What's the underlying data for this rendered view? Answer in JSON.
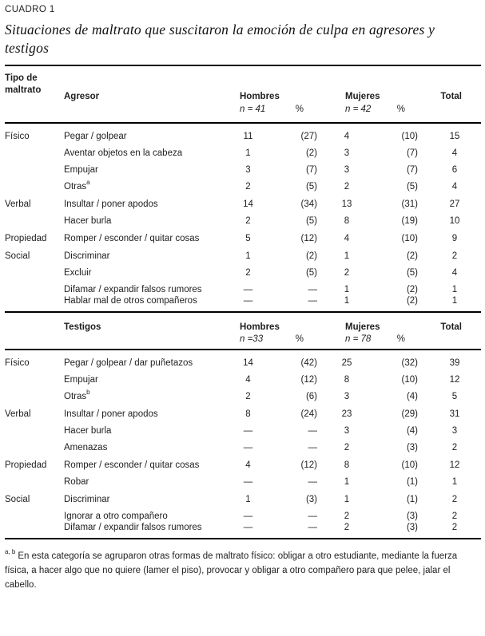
{
  "page": {
    "kicker": "CUADRO 1",
    "title": "Situaciones de maltrato que suscitaron la emoción de culpa en agresores y testigos"
  },
  "columns": {
    "tipo": "Tipo de maltrato",
    "hombres": "Hombres",
    "mujeres": "Mujeres",
    "pct": "%",
    "total": "Total"
  },
  "table_agresor": {
    "group": "Agresor",
    "n_hombres": "n = 41",
    "n_mujeres": "n = 42",
    "sections": [
      {
        "tipo": "Físico",
        "rows": [
          {
            "item": "Pegar / golpear",
            "sup": "",
            "h": "11",
            "hp": "(27)",
            "m": "4",
            "mp": "(10)",
            "t": "15"
          },
          {
            "item": "Aventar objetos en la cabeza",
            "sup": "",
            "h": "1",
            "hp": "(2)",
            "m": "3",
            "mp": "(7)",
            "t": "4"
          },
          {
            "item": "Empujar",
            "sup": "",
            "h": "3",
            "hp": "(7)",
            "m": "3",
            "mp": "(7)",
            "t": "6"
          },
          {
            "item": "Otras",
            "sup": "a",
            "h": "2",
            "hp": "(5)",
            "m": "2",
            "mp": "(5)",
            "t": "4"
          }
        ]
      },
      {
        "tipo": "Verbal",
        "rows": [
          {
            "item": "Insultar / poner apodos",
            "sup": "",
            "h": "14",
            "hp": "(34)",
            "m": "13",
            "mp": "(31)",
            "t": "27"
          },
          {
            "item": "Hacer burla",
            "sup": "",
            "h": "2",
            "hp": "(5)",
            "m": "8",
            "mp": "(19)",
            "t": "10"
          }
        ]
      },
      {
        "tipo": "Propiedad",
        "rows": [
          {
            "item": "Romper / esconder / quitar cosas",
            "sup": "",
            "h": "5",
            "hp": "(12)",
            "m": "4",
            "mp": "(10)",
            "t": "9"
          }
        ]
      },
      {
        "tipo": "Social",
        "rows": [
          {
            "item": "Discriminar",
            "sup": "",
            "h": "1",
            "hp": "(2)",
            "m": "1",
            "mp": "(2)",
            "t": "2"
          },
          {
            "item": "Excluir",
            "sup": "",
            "h": "2",
            "hp": "(5)",
            "m": "2",
            "mp": "(5)",
            "t": "4"
          },
          {
            "item": "Difamar / expandir falsos rumores",
            "sup": "",
            "h": "—",
            "hp": "—",
            "m": "1",
            "mp": "(2)",
            "t": "1"
          },
          {
            "item": "Hablar mal de otros compañeros",
            "sup": "",
            "h": "—",
            "hp": "—",
            "m": "1",
            "mp": "(2)",
            "t": "1"
          }
        ]
      }
    ]
  },
  "table_testigos": {
    "group": "Testigos",
    "n_hombres": "n =33",
    "n_mujeres": "n = 78",
    "sections": [
      {
        "tipo": "Físico",
        "rows": [
          {
            "item": "Pegar / golpear / dar puñetazos",
            "sup": "",
            "h": "14",
            "hp": "(42)",
            "m": "25",
            "mp": "(32)",
            "t": "39"
          },
          {
            "item": "Empujar",
            "sup": "",
            "h": "4",
            "hp": "(12)",
            "m": "8",
            "mp": "(10)",
            "t": "12"
          },
          {
            "item": "Otras",
            "sup": "b",
            "h": "2",
            "hp": "(6)",
            "m": "3",
            "mp": "(4)",
            "t": "5"
          }
        ]
      },
      {
        "tipo": "Verbal",
        "rows": [
          {
            "item": "Insultar / poner apodos",
            "sup": "",
            "h": "8",
            "hp": "(24)",
            "m": "23",
            "mp": "(29)",
            "t": "31"
          },
          {
            "item": "Hacer burla",
            "sup": "",
            "h": "—",
            "hp": "—",
            "m": "3",
            "mp": "(4)",
            "t": "3"
          },
          {
            "item": "Amenazas",
            "sup": "",
            "h": "—",
            "hp": "—",
            "m": "2",
            "mp": "(3)",
            "t": "2"
          }
        ]
      },
      {
        "tipo": "Propiedad",
        "rows": [
          {
            "item": "Romper / esconder / quitar cosas",
            "sup": "",
            "h": "4",
            "hp": "(12)",
            "m": "8",
            "mp": "(10)",
            "t": "12"
          },
          {
            "item": "Robar",
            "sup": "",
            "h": "—",
            "hp": "—",
            "m": "1",
            "mp": "(1)",
            "t": "1"
          }
        ]
      },
      {
        "tipo": "Social",
        "rows": [
          {
            "item": "Discriminar",
            "sup": "",
            "h": "1",
            "hp": "(3)",
            "m": "1",
            "mp": "(1)",
            "t": "2"
          },
          {
            "item": "Ignorar a otro compañero",
            "sup": "",
            "h": "—",
            "hp": "—",
            "m": "2",
            "mp": "(3)",
            "t": "2"
          },
          {
            "item": "Difamar / expandir falsos rumores",
            "sup": "",
            "h": "—",
            "hp": "—",
            "m": "2",
            "mp": "(3)",
            "t": "2"
          }
        ]
      }
    ]
  },
  "footnote": {
    "marker": "a, b",
    "text": "En esta categoría se agruparon otras formas de maltrato físico: obligar a otro estudiante, mediante la fuerza física, a hacer algo que no quiere (lamer el piso), provocar y obligar a otro compañero para que pelee, jalar el cabello."
  },
  "colors": {
    "text": "#1e1e1e",
    "rule": "#000000",
    "background": "#ffffff"
  }
}
